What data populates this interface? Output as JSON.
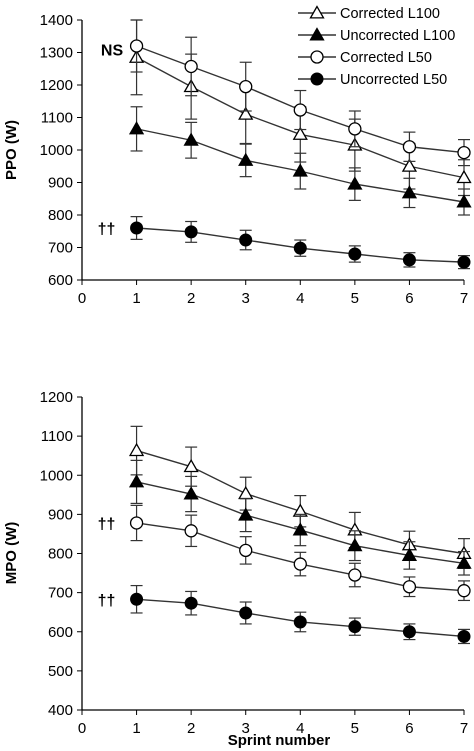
{
  "chart_data": [
    {
      "type": "line",
      "ylabel": "PPO (W)",
      "xlabel": "",
      "xlim": [
        0,
        7
      ],
      "ylim": [
        600,
        1400
      ],
      "x": [
        1,
        2,
        3,
        4,
        5,
        6,
        7
      ],
      "x_ticks": [
        0,
        1,
        2,
        3,
        4,
        5,
        6,
        7
      ],
      "y_ticks": [
        600,
        700,
        800,
        900,
        1000,
        1100,
        1200,
        1300,
        1400
      ],
      "legend": {
        "placement": "top-right",
        "entries": [
          "Corrected L100",
          "Uncorrected L100",
          "Corrected L50",
          "Uncorrected L50"
        ]
      },
      "series": [
        {
          "name": "Corrected L100",
          "marker": "open-triangle",
          "values": [
            1285,
            1195,
            1110,
            1048,
            1015,
            950,
            915
          ],
          "err": [
            115,
            100,
            90,
            85,
            80,
            70,
            55
          ]
        },
        {
          "name": "Uncorrected L100",
          "marker": "filled-triangle",
          "values": [
            1065,
            1030,
            968,
            935,
            895,
            868,
            840
          ],
          "err": [
            68,
            55,
            50,
            55,
            50,
            45,
            40
          ]
        },
        {
          "name": "Corrected L50",
          "marker": "open-circle",
          "values": [
            1320,
            1257,
            1195,
            1123,
            1065,
            1010,
            992
          ],
          "err": [
            80,
            90,
            75,
            60,
            55,
            45,
            40
          ]
        },
        {
          "name": "Uncorrected L50",
          "marker": "filled-circle",
          "values": [
            760,
            748,
            723,
            698,
            680,
            662,
            655
          ],
          "err": [
            35,
            32,
            30,
            25,
            25,
            22,
            20
          ]
        }
      ],
      "annotations": [
        {
          "text": "NS",
          "x": 0.55,
          "y": 1310
        },
        {
          "text": "††",
          "x": 0.45,
          "y": 760
        }
      ]
    },
    {
      "type": "line",
      "ylabel": "MPO (W)",
      "xlabel": "Sprint number",
      "xlim": [
        0,
        7
      ],
      "ylim": [
        400,
        1200
      ],
      "x": [
        1,
        2,
        3,
        4,
        5,
        6,
        7
      ],
      "x_ticks": [
        0,
        1,
        2,
        3,
        4,
        5,
        6,
        7
      ],
      "y_ticks": [
        400,
        500,
        600,
        700,
        800,
        900,
        1000,
        1100,
        1200
      ],
      "series": [
        {
          "name": "Corrected L100",
          "marker": "open-triangle",
          "values": [
            1063,
            1022,
            953,
            908,
            860,
            822,
            800
          ],
          "err": [
            62,
            50,
            42,
            40,
            45,
            35,
            38
          ]
        },
        {
          "name": "Uncorrected L100",
          "marker": "filled-triangle",
          "values": [
            983,
            952,
            898,
            860,
            820,
            795,
            775
          ],
          "err": [
            55,
            45,
            42,
            40,
            38,
            35,
            30
          ]
        },
        {
          "name": "Corrected L50",
          "marker": "open-circle",
          "values": [
            878,
            858,
            808,
            773,
            745,
            715,
            705
          ],
          "err": [
            45,
            40,
            35,
            30,
            30,
            25,
            25
          ]
        },
        {
          "name": "Uncorrected L50",
          "marker": "filled-circle",
          "values": [
            683,
            673,
            648,
            625,
            613,
            600,
            588
          ],
          "err": [
            35,
            30,
            28,
            25,
            22,
            20,
            18
          ]
        }
      ],
      "annotations": [
        {
          "text": "††",
          "x": 0.45,
          "y": 878
        },
        {
          "text": "††",
          "x": 0.45,
          "y": 683
        }
      ]
    }
  ]
}
